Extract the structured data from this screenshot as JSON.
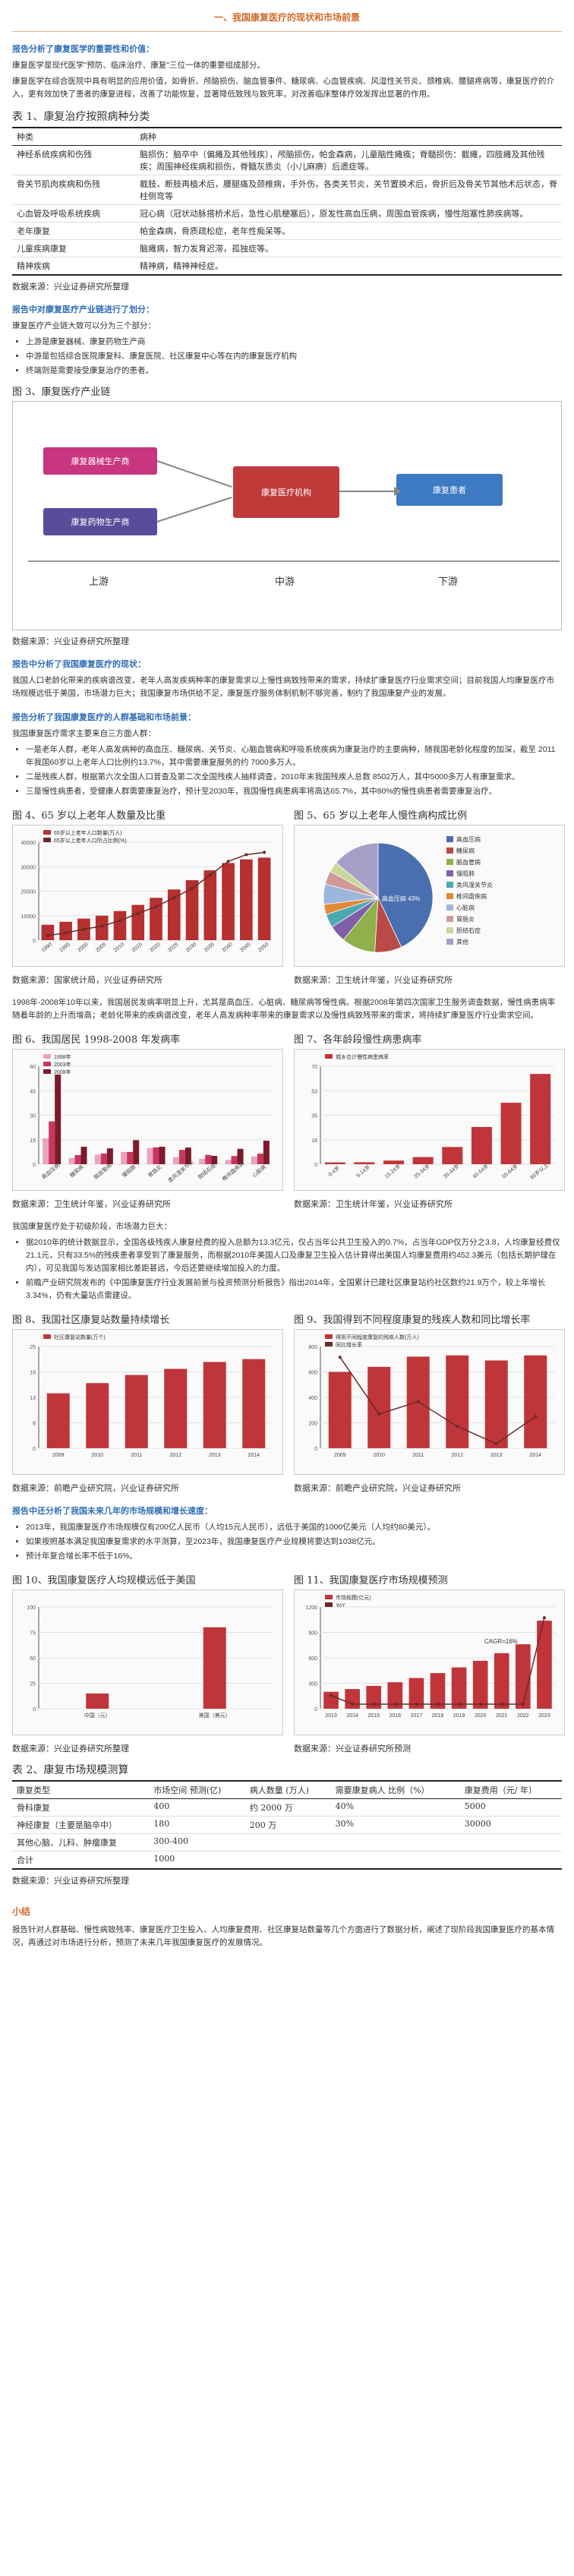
{
  "page_title": "一、我国康复医疗的现状和市场前景",
  "s1": {
    "title": "报告分析了康复医学的重要性和价值：",
    "p1": "康复医学是现代医学\"预防、临床治疗、康复\"三位一体的重要组成部分。",
    "p2": "康复医学在综合医院中具有明显的应用价值，如骨折、颅脑损伤、脑血管事件、糖尿病、心血管疾病、风湿性关节炎、颈椎病、腰腿疼病等，康复医疗的介入，更有效加快了患者的康复进程，改善了功能恢复，显著降低致残与致死率，对改善临床整体疗效发挥出显著的作用。"
  },
  "table1": {
    "caption": "表 1、康复治疗按照病种分类",
    "headers": [
      "种类",
      "病种"
    ],
    "rows": [
      [
        "神经系统疾病和伤残",
        "脑损伤：脑卒中（偏瘫及其他残疾），颅脑损伤，帕金森病，儿童脑性瘫痪；脊髓损伤：截瘫，四肢瘫及其他残疾；周围神经疾病和损伤，脊髓灰质炎（小儿麻痹）后遗症等。"
      ],
      [
        "骨关节肌肉疾病和伤残",
        "截肢，断肢再植术后，腰腿痛及颈椎病，手外伤，各类关节炎，关节置换术后，骨折后及骨关节其他术后状态，脊柱侧弯等"
      ],
      [
        "心血管及呼吸系统疾病",
        "冠心病（冠状动脉搭桥术后，急性心肌梗塞后），原发性高血压病，周围血管疾病，慢性阻塞性肺疾病等。"
      ],
      [
        "老年康复",
        "帕金森病，骨质疏松症，老年性痴呆等。"
      ],
      [
        "儿童疾病康复",
        "脑瘫病，智力发育迟滞，孤独症等。"
      ],
      [
        "精神疾病",
        "精神病，精神神经症。"
      ]
    ],
    "source": "数据来源：兴业证券研究所整理"
  },
  "s2": {
    "title": "报告中对康复医疗产业链进行了划分：",
    "p1": "康复医疗产业链大致可以分为三个部分：",
    "bullets": [
      "上游是康复器械、康复药物生产商",
      "中游是包括综合医院康复科、康复医院、社区康复中心等在内的康复医疗机构",
      "终端则是需要接受康复治疗的患者。"
    ]
  },
  "fig3": {
    "caption": "图 3、康复医疗产业链",
    "box1": "康复器械生产商",
    "box2": "康复药物生产商",
    "box3": "康复医疗机构",
    "box4": "康复患者",
    "up": "上游",
    "mid": "中游",
    "down": "下游",
    "source": "数据来源：兴业证券研究所整理"
  },
  "s3": {
    "title": "报告中分析了我国康复医疗的现状：",
    "p1": "我国人口老龄化带来的疾病谱改变，老年人高发疾病种率的康复需求以上慢性病致残带来的需求，持续扩康复医疗行业需求空间；目前我国人均康复医疗市场规模远低于美国，市场潜力巨大；我国康复市场供给不足，康复医疗服务体制机制不够完善，制约了我国康复产业的发展。"
  },
  "s4": {
    "title": "报告分析了我国康复医疗的人群基础和市场前景：",
    "p1": "我国康复医疗需求主要来自三方面人群：",
    "bullets": [
      "一是老年人群，老年人高发病种的高血压、糖尿病、关节炎、心脑血管病和呼吸系统疾病为康复治疗的主要病种，随我国老龄化程度的加深，截至 2011年我国60岁以上老年人口比例约13.7%，其中需要康复服务的约 7000多万人。",
      "二是残疾人群，根据第六次全国人口普查及第二次全国残疾人抽样调查，2010年末我国残疾人总数 8502万人，其中5000多万人有康复需求。",
      "三是慢性病患者，受健康人群需要康复治疗，预计至2030年，我国慢性病患病率将高达65.7%，其中80%的慢性病患者需要康复治疗。"
    ]
  },
  "fig4": {
    "caption": "图 4、65 岁以上老年人数量及比重",
    "legend1": "65岁以上老年人口数量(万人)",
    "legend2": "65岁以上老年人口所占比例(%)",
    "source": "数据来源：国家统计局，兴业证券研究所"
  },
  "fig5": {
    "caption": "图 5、65 岁以上老年人慢性病构成比例",
    "center_label": "高血压病 43%",
    "source": "数据来源：卫生统计年鉴，兴业证券研究所"
  },
  "s5": {
    "p1": "1998年-2008年10年以来，我国居民发病率明显上升，尤其是高血压、心脏病、糖尿病等慢性病。根据2008年第四次国家卫生服务调查数据，慢性病患病率随着年龄的上升而增高；老龄化带来的疾病谱改变，老年人高发病种率带来的康复需求以及慢性病致残带来的需求，将持续扩康复医疗行业需求空间。"
  },
  "fig6": {
    "caption": "图 6、我国居民 1998-2008 年发病率",
    "source": "数据来源：卫生统计年鉴，兴业证券研究所"
  },
  "fig7": {
    "caption": "图 7、各年龄段慢性病患病率",
    "legend": "城乡合计慢性病患病率",
    "source": "数据来源：卫生统计年鉴，兴业证券研究所"
  },
  "s6": {
    "p1": "我国康复医疗处于初级阶段，市场潜力巨大：",
    "bullets": [
      "据2010年的统计数据显示，全国各级残疾人康复经费的投入总额为13.3亿元，仅占当年公共卫生投入的0.7%，占当年GDP仅万分之3.8，人均康复经费仅21.1元，只有33.5%的残疾患者享受到了康复服务，而根据2010年美国人口及康复卫生投入估计算得出美国人均康复费用约452.3美元（包括长期护理在内），可见我国与发达国家相比差距甚远，今后还要继续增加投入的力度。",
      "前瞻产业研究院发布的《中国康复医疗行业发展前景与投资预测分析报告》指出2014年，全国累计已建社区康复站约社区数约21.9万个，较上年增长3.34%，仍有大量站点需建设。"
    ]
  },
  "fig8": {
    "caption": "图 8、我国社区康复站数量持续增长",
    "legend": "社区康复站数量(万个)",
    "source": "数据来源：前瞻产业研究院，兴业证券研究所"
  },
  "fig9": {
    "caption": "图 9、我国得到不同程度康复的残疾人数和同比增长率",
    "legend1": "得到不同程度康复的残疾人数(万人)",
    "legend2": "同比增长率",
    "source": "数据来源：前瞻产业研究院，兴业证券研究所"
  },
  "s7": {
    "title": "报告中还分析了我国未来几年的市场规模和增长速度：",
    "bullets": [
      "2013年，我国康复医疗市场规模仅有200亿人民币（人均15元人民币），远低于美国的1000亿美元（人均约80美元）。",
      "如果按照基本满足我国康复需求的水平测算，至2023年，我国康复医疗产业规模将要达到1038亿元。",
      "预计年复合增长率不低于16%。"
    ]
  },
  "fig10": {
    "caption": "图 10、我国康复医疗人均规模远低于美国",
    "source": "数据来源：兴业证券研究所整理"
  },
  "fig11": {
    "caption": "图 11、我国康复医疗市场规模预测",
    "legend1": "市场规模(亿元)",
    "legend2": "YoY",
    "cagr": "CAGR=16%",
    "source": "数据来源：兴业证券研究所预测"
  },
  "table2": {
    "caption": "表 2、康复市场规模测算",
    "headers": [
      "康复类型",
      "市场空间\n预测(亿)",
      "病人数量\n(万人)",
      "需要康复病人\n比例（%）",
      "康复费用（元/\n年）"
    ],
    "rows": [
      [
        "骨科康复",
        "400",
        "约 2000 万",
        "40%",
        "5000"
      ],
      [
        "神经康复（主要是脑卒中）",
        "180",
        "200 万",
        "30%",
        "30000"
      ],
      [
        "其他心脑、儿科、肿瘤康复",
        "300-400",
        "",
        "",
        ""
      ],
      [
        "合计",
        "1000",
        "",
        "",
        ""
      ]
    ],
    "source": "数据来源：兴业证券研究所整理"
  },
  "summary": {
    "title": "小结",
    "p1": "报告针对人群基础、慢性病致残率、康复医疗卫生投入、人均康复费用、社区康复站数量等几个方面进行了数据分析，阐述了现阶段我国康复医疗的基本情况，再通过对市场进行分析，预测了未来几年我国康复医疗的发展情况。"
  },
  "chart_data": [
    {
      "type": "bar",
      "title": "图 4、65 岁以上老年人数量及比重",
      "categories": [
        "1990",
        "1995",
        "2000",
        "2005",
        "2010",
        "2015",
        "2020",
        "2025",
        "2030",
        "2035",
        "2040",
        "2045",
        "2050"
      ],
      "series": [
        {
          "name": "65岁以上老年人口数量(万人)",
          "values": [
            6300,
            7500,
            8800,
            10000,
            11900,
            14400,
            17300,
            20700,
            24500,
            28500,
            31500,
            33000,
            33700
          ]
        },
        {
          "name": "65岁以上老年人口所占比例(%)",
          "values": [
            5.6,
            6.2,
            7.0,
            7.7,
            8.9,
            10.5,
            12.0,
            14.0,
            16.0,
            19.0,
            22.0,
            23.5,
            24.0
          ]
        }
      ],
      "ylim": [
        0,
        40000
      ],
      "colors": [
        "#b53030",
        "#6a2a2a"
      ]
    },
    {
      "type": "pie",
      "title": "图 5、65 岁以上老年人慢性病构成比例",
      "labels": [
        "高血压病",
        "糖尿病",
        "脑血管病",
        "慢阻肺",
        "类风湿关节炎",
        "椎间盘疾病",
        "心脏病",
        "胃肠炎",
        "胆结石症",
        "其他"
      ],
      "values": [
        43,
        8,
        10,
        5,
        4,
        3,
        6,
        4,
        3,
        14
      ],
      "colors": [
        "#4a6fb0",
        "#b94a48",
        "#8fb04a",
        "#7f5fa8",
        "#4aa8b0",
        "#e08a3a",
        "#9db6dc",
        "#d09a9a",
        "#c8d89a",
        "#a89fc8"
      ]
    },
    {
      "type": "bar",
      "title": "图 6、我国居民 1998-2008 年发病率",
      "categories": [
        "高血压病",
        "糖尿病",
        "脑血管病",
        "慢阻肺",
        "胃肠炎",
        "类风湿关节炎",
        "胆结石症",
        "椎间盘疾病",
        "心脏病"
      ],
      "series": [
        {
          "name": "1998年",
          "values": [
            15.9,
            3.7,
            5.9,
            7.5,
            10.0,
            4.3,
            3.3,
            2.6,
            4.8
          ]
        },
        {
          "name": "2003年",
          "values": [
            26.2,
            5.6,
            6.6,
            7.5,
            10.3,
            8.8,
            5.7,
            5.0,
            6.5
          ]
        },
        {
          "name": "2008年",
          "values": [
            54.9,
            10.7,
            9.7,
            14.7,
            10.7,
            10.2,
            5.1,
            9.4,
            14.4
          ]
        }
      ],
      "ylim": [
        0,
        60
      ],
      "colors": [
        "#e8a5c0",
        "#c8365f",
        "#7a1b2c"
      ]
    },
    {
      "type": "bar",
      "title": "图 7、各年龄段慢性病患病率",
      "categories": [
        "0-4岁",
        "5-14岁",
        "15-24岁",
        "25-34岁",
        "35-44岁",
        "45-54岁",
        "55-64岁",
        "65岁以上"
      ],
      "series": [
        {
          "name": "城乡合计慢性病患病率",
          "values": [
            1.3,
            1.4,
            2.6,
            5.1,
            12.3,
            26.6,
            43.9,
            64.5
          ]
        }
      ],
      "ylim": [
        0,
        70
      ],
      "colors": [
        "#c0353a"
      ]
    },
    {
      "type": "bar",
      "title": "图 8、我国社区康复站数量持续增长",
      "categories": [
        "2009",
        "2010",
        "2011",
        "2012",
        "2013",
        "2014"
      ],
      "series": [
        {
          "name": "社区康复站数量(万个)",
          "values": [
            13.5,
            16.0,
            18.0,
            19.5,
            21.2,
            21.9
          ]
        }
      ],
      "ylim": [
        0,
        25
      ],
      "colors": [
        "#c0353a"
      ]
    },
    {
      "type": "bar",
      "title": "图 9、我国得到不同程度康复的残疾人数和同比增长率",
      "categories": [
        "2009",
        "2010",
        "2011",
        "2012",
        "2013",
        "2014"
      ],
      "series": [
        {
          "name": "得到不同程度康复的残疾人数(万人)",
          "values": [
            600,
            640,
            720,
            730,
            690,
            730
          ]
        },
        {
          "name": "同比增长率",
          "values": [
            0.3,
            0.07,
            0.12,
            0.02,
            -0.05,
            0.06
          ]
        }
      ],
      "ylim": [
        0,
        800
      ],
      "colors": [
        "#c0353a",
        "#6a2a2a"
      ]
    },
    {
      "type": "bar",
      "title": "图 10、我国康复医疗人均规模远低于美国",
      "categories": [
        "中国（元）",
        "美国（美元）"
      ],
      "values": [
        15,
        80
      ],
      "ylim": [
        0,
        100
      ],
      "colors": [
        "#c0353a"
      ]
    },
    {
      "type": "bar",
      "title": "图 11、我国康复医疗市场规模预测",
      "categories": [
        "2013",
        "2014",
        "2015",
        "2016",
        "2017",
        "2018",
        "2019",
        "2020",
        "2021",
        "2022",
        "2023"
      ],
      "series": [
        {
          "name": "市场规模(亿元)",
          "values": [
            200,
            232,
            269,
            312,
            362,
            420,
            487,
            565,
            655,
            760,
            1038
          ]
        },
        {
          "name": "YoY",
          "values": [
            0.18,
            0.16,
            0.16,
            0.16,
            0.16,
            0.16,
            0.16,
            0.16,
            0.16,
            0.16,
            0.36
          ]
        }
      ],
      "ylim": [
        0,
        1200
      ],
      "colors": [
        "#c0353a",
        "#6a2a2a"
      ]
    }
  ]
}
